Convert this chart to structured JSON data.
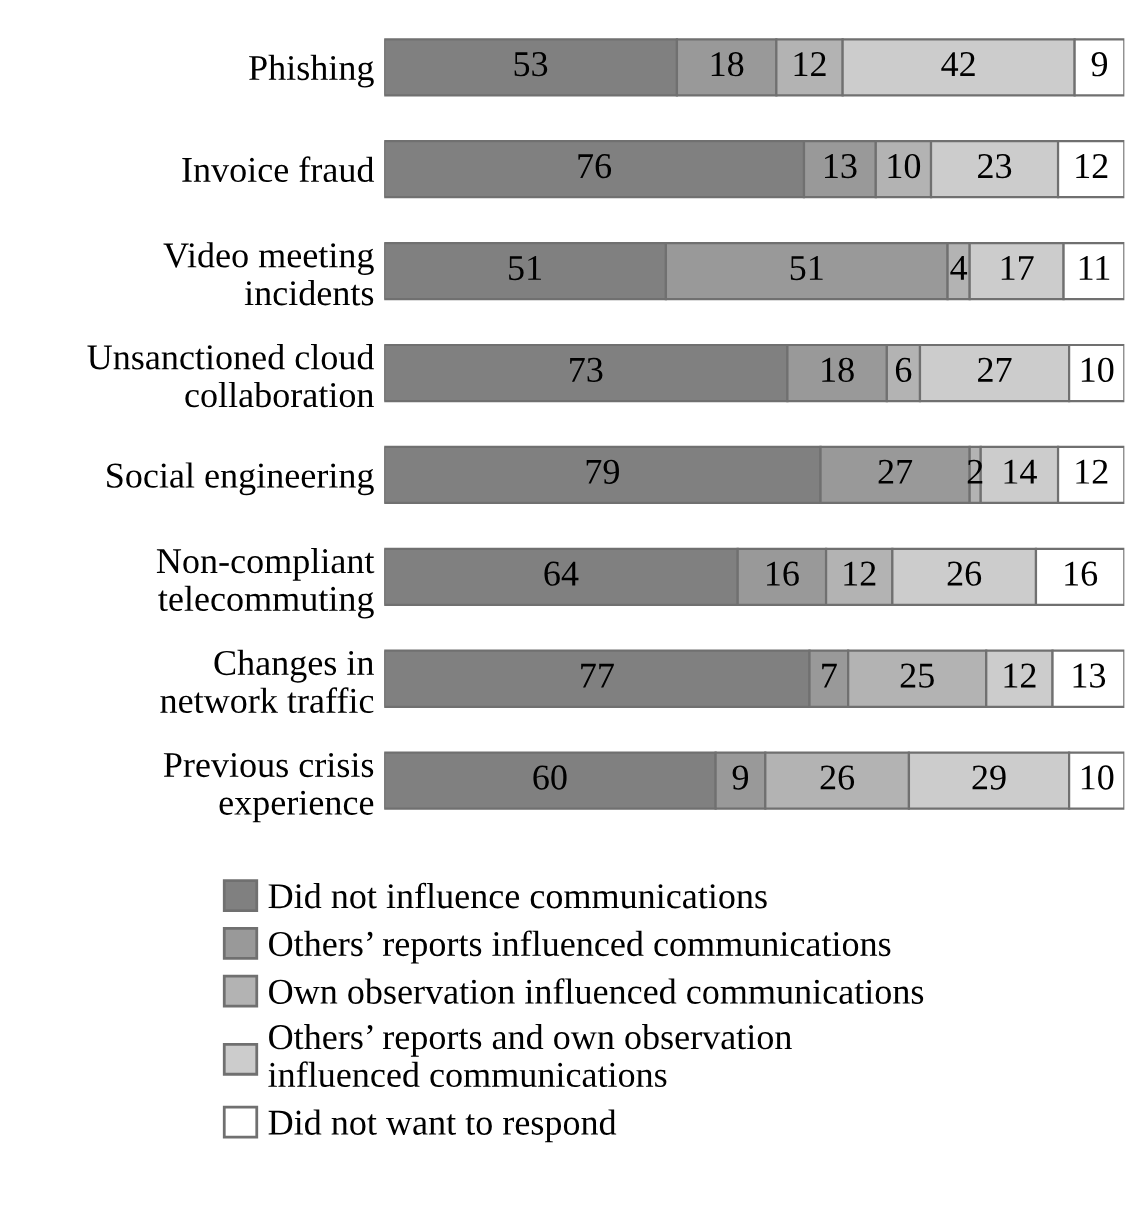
{
  "chart_data": {
    "type": "bar",
    "orientation": "horizontal",
    "stacked": true,
    "data_labels": true,
    "legend": "bottom",
    "grid": false,
    "tick_labels": "y",
    "categories": [
      "Phishing",
      "Invoice fraud",
      "Video meeting\nincidents",
      "Unsanctioned cloud\ncollaboration",
      "Social engineering",
      "Non-compliant\ntelecommuting",
      "Changes in\nnetwork traffic",
      "Previous crisis\nexperience"
    ],
    "series": [
      {
        "name": "Did not influence communications",
        "color": "#808080",
        "values": [
          53,
          76,
          51,
          73,
          79,
          64,
          77,
          60
        ]
      },
      {
        "name": "Others’ reports influenced communications",
        "color": "#999999",
        "values": [
          18,
          13,
          51,
          18,
          27,
          16,
          7,
          9
        ]
      },
      {
        "name": "Own observation influenced communications",
        "color": "#b3b3b3",
        "values": [
          12,
          10,
          4,
          6,
          2,
          12,
          25,
          26
        ]
      },
      {
        "name": "Others’ reports and own observation\ninfluenced communications",
        "color": "#cccccc",
        "values": [
          42,
          23,
          17,
          27,
          14,
          26,
          12,
          29
        ]
      },
      {
        "name": "Did not want to respond",
        "color": "#ffffff",
        "values": [
          9,
          12,
          11,
          10,
          12,
          16,
          13,
          10
        ]
      }
    ]
  }
}
